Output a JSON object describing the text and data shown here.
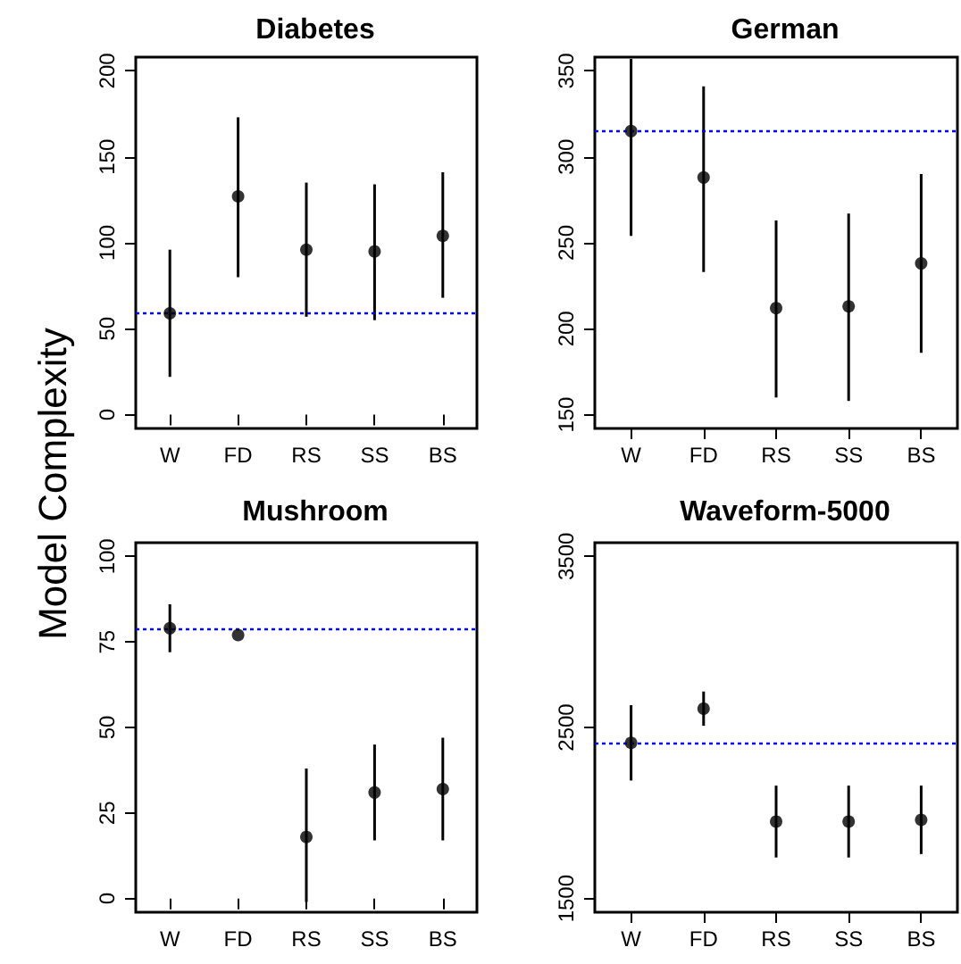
{
  "chart_data": [
    {
      "type": "scatter",
      "title": "Diabetes",
      "ylabel": "Model Complexity",
      "categories": [
        "W",
        "FD",
        "RS",
        "SS",
        "BS"
      ],
      "marker": "circle",
      "grid": false,
      "series": [
        {
          "color": "#000000",
          "values": [
            59,
            127,
            96,
            95,
            104
          ],
          "errors": [
            [
              22,
              96
            ],
            [
              80,
              173
            ],
            [
              57,
              135
            ],
            [
              55,
              134
            ],
            [
              68,
              141
            ]
          ]
        }
      ],
      "ylim": [
        -8,
        208
      ],
      "yticks": [
        0,
        50,
        100,
        150,
        200
      ],
      "ref_lines": [
        {
          "axis": "y",
          "value": 59,
          "color": "#0000ff",
          "line_style": "dotted"
        }
      ]
    },
    {
      "type": "scatter",
      "title": "German",
      "categories": [
        "W",
        "FD",
        "RS",
        "SS",
        "BS"
      ],
      "marker": "circle",
      "grid": false,
      "series": [
        {
          "color": "#000000",
          "values": [
            315,
            288,
            212,
            213,
            238
          ],
          "errors": [
            [
              254,
              357
            ],
            [
              233,
              341
            ],
            [
              160,
              263
            ],
            [
              158,
              267
            ],
            [
              186,
              290
            ]
          ]
        }
      ],
      "ylim": [
        142,
        358
      ],
      "yticks": [
        150,
        200,
        250,
        300,
        350
      ],
      "ref_lines": [
        {
          "axis": "y",
          "value": 315,
          "color": "#0000ff",
          "line_style": "dotted"
        }
      ]
    },
    {
      "type": "scatter",
      "title": "Mushroom",
      "categories": [
        "W",
        "FD",
        "RS",
        "SS",
        "BS"
      ],
      "marker": "circle",
      "grid": false,
      "series": [
        {
          "color": "#000000",
          "values": [
            79,
            77,
            18,
            31,
            32
          ],
          "errors": [
            [
              72,
              86
            ],
            null,
            [
              -1,
              38
            ],
            [
              17,
              45
            ],
            [
              17,
              47
            ]
          ]
        }
      ],
      "ylim": [
        -4,
        104
      ],
      "yticks": [
        0,
        25,
        50,
        75,
        100
      ],
      "ref_lines": [
        {
          "axis": "y",
          "value": 79,
          "color": "#0000ff",
          "line_style": "dotted"
        }
      ]
    },
    {
      "type": "scatter",
      "title": "Waveform-5000",
      "categories": [
        "W",
        "FD",
        "RS",
        "SS",
        "BS"
      ],
      "marker": "circle",
      "grid": false,
      "series": [
        {
          "color": "#000000",
          "values": [
            2410,
            2610,
            1950,
            1950,
            1960
          ],
          "errors": [
            [
              2190,
              2630
            ],
            [
              2510,
              2710
            ],
            [
              1740,
              2160
            ],
            [
              1740,
              2160
            ],
            [
              1760,
              2160
            ]
          ]
        }
      ],
      "ylim": [
        1420,
        3580
      ],
      "yticks": [
        1500,
        2500,
        3500
      ],
      "ref_lines": [
        {
          "axis": "y",
          "value": 2410,
          "color": "#0000ff",
          "line_style": "dotted"
        }
      ]
    }
  ]
}
